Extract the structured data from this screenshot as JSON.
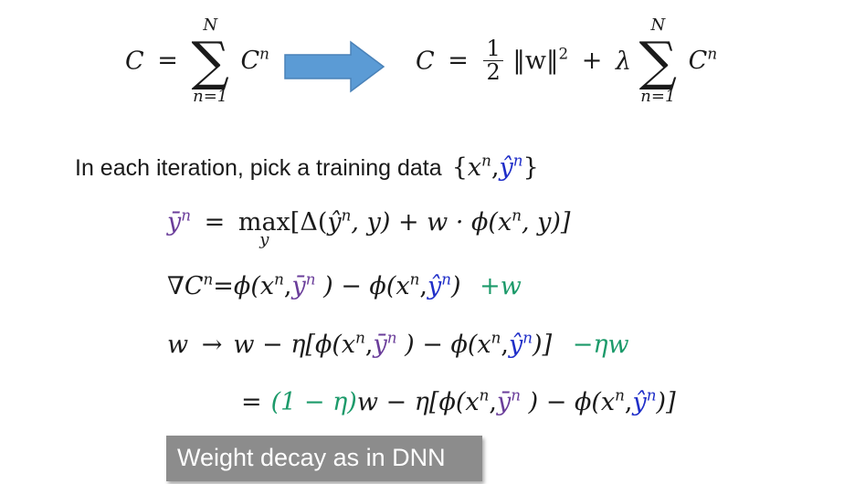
{
  "eq_top": {
    "left_lhs": "C",
    "eq": "=",
    "sum_upper": "N",
    "sum_lower": "n=1",
    "term": "C",
    "sup_n": "n",
    "half_num": "1",
    "half_den": "2",
    "norm": "‖w‖",
    "sq": "2",
    "plus": "+",
    "lambda": "λ"
  },
  "sentence": {
    "text": "In each iteration,  pick a training data",
    "set_open": "{",
    "x": "x",
    "comma": ",",
    "yhat": "ŷ",
    "set_close": "}"
  },
  "line1": {
    "ybar": "ȳ",
    "eq": "=",
    "max": "max",
    "max_sub": "y",
    "body": "[Δ(",
    "yhat": "ŷ",
    "rest": ", y) + w · ϕ(x",
    "rest2": ", y)]"
  },
  "line2": {
    "grad": "∇C",
    "eq": "=ϕ(x",
    "ybar": "ȳ",
    "mid": " ) − ϕ(x",
    "yhat": "ŷ",
    "close": ")",
    "green": "+w"
  },
  "line3": {
    "w": "w",
    "arrow": "→",
    "body": "w − η[ϕ(x",
    "ybar": "ȳ",
    "mid": " ) − ϕ(x",
    "yhat": "ŷ",
    "close": ")]",
    "green": "−ηw"
  },
  "line4": {
    "eq": "=",
    "green": "(1 − η)",
    "body": "w − η[ϕ(x",
    "ybar": "ȳ",
    "mid": " ) − ϕ(x",
    "yhat": "ŷ",
    "close": ")]"
  },
  "footer": {
    "label": "Weight decay as in DNN"
  },
  "colors": {
    "blue": "#1f2ec8",
    "purple": "#6a3d9a",
    "green": "#1c9a6a",
    "arrow": "#5b9bd5",
    "footer_bg": "#8c8c8c"
  }
}
